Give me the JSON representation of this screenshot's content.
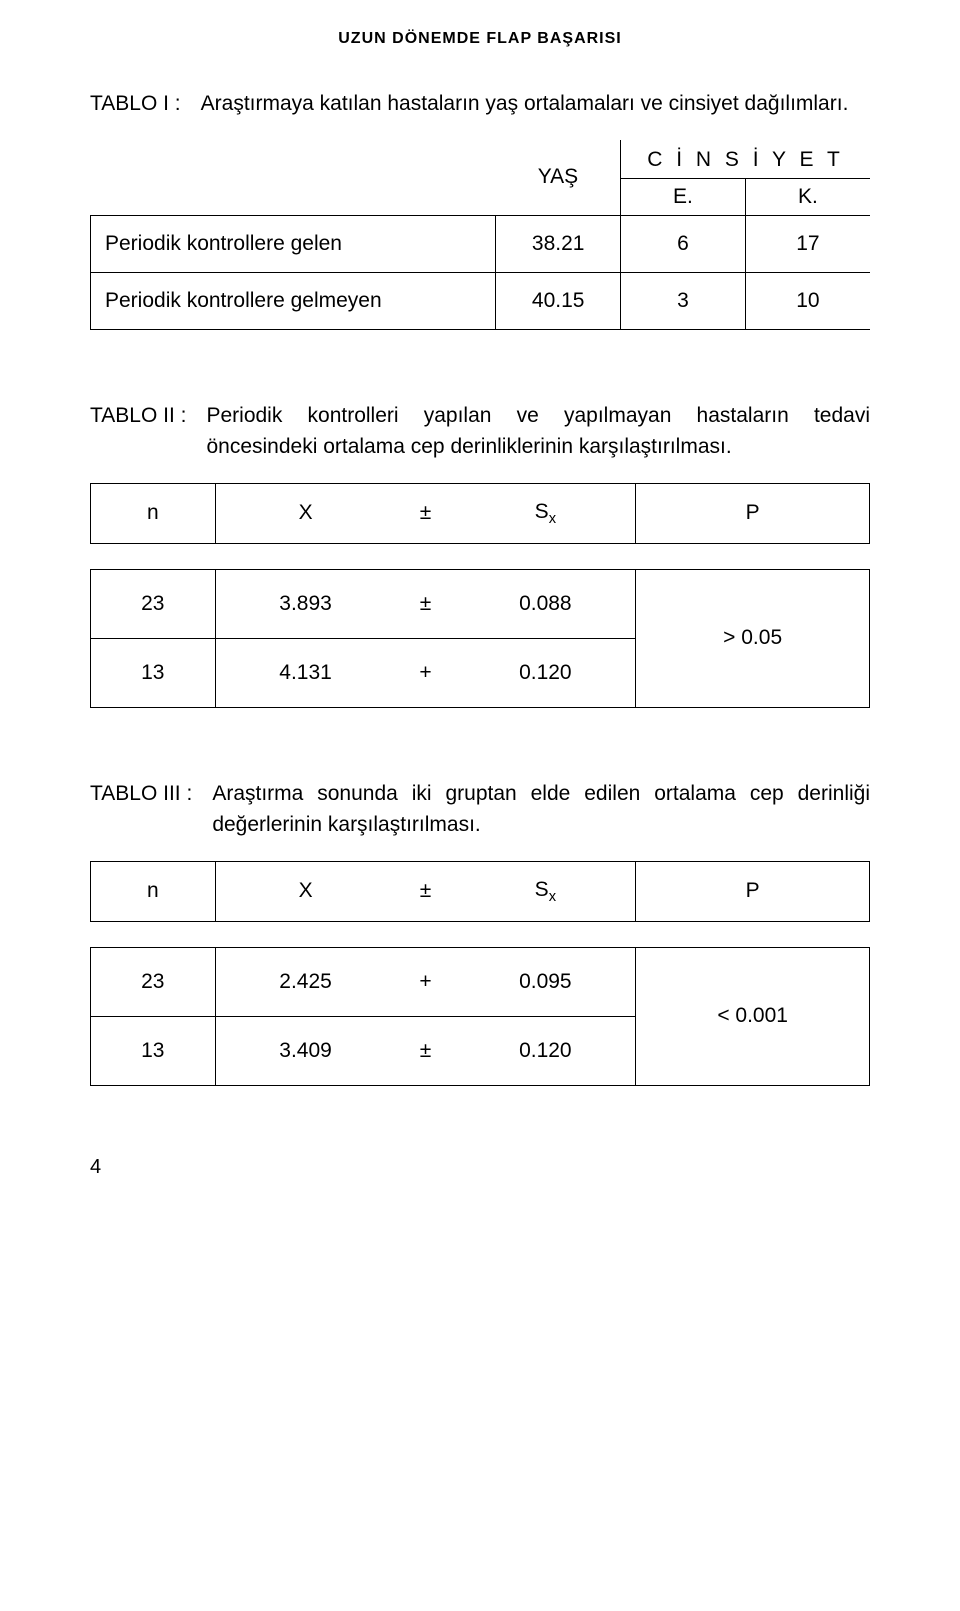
{
  "running_head": "UZUN DÖNEMDE FLAP BAŞARISI",
  "tablo1": {
    "label": "TABLO I  :",
    "caption": "Araştırmaya katılan hastaların yaş ortalamaları ve cinsiyet dağılımları.",
    "head_yas": "YAŞ",
    "head_cinsiyet": "C İ N S İ Y E T",
    "head_e": "E.",
    "head_k": "K.",
    "rows": [
      {
        "label": "Periodik kontrollere gelen",
        "yas": "38.21",
        "e": "6",
        "k": "17"
      },
      {
        "label": "Periodik kontrollere gelmeyen",
        "yas": "40.15",
        "e": "3",
        "k": "10"
      }
    ]
  },
  "tablo2": {
    "label": "TABLO II  :",
    "caption": "Periodik kontrolleri yapılan ve yapılmayan hastaların tedavi öncesindeki ortalama cep derinliklerinin karşılaştırılması.",
    "head_n": "n",
    "head_x": "X",
    "head_pm": "±",
    "head_s": "S",
    "head_s_sub": "x",
    "head_p": "P",
    "rows": [
      {
        "n": "23",
        "x": "3.893",
        "pm": "±",
        "s": "0.088"
      },
      {
        "n": "13",
        "x": "4.131",
        "pm": "+",
        "s": "0.120"
      }
    ],
    "p": "> 0.05"
  },
  "tablo3": {
    "label": "TABLO III  :",
    "caption": "Araştırma sonunda iki gruptan elde edilen ortalama cep derinliği değerlerinin karşılaştırılması.",
    "head_n": "n",
    "head_x": "X",
    "head_pm": "±",
    "head_s": "S",
    "head_s_sub": "x",
    "head_p": "P",
    "rows": [
      {
        "n": "23",
        "x": "2.425",
        "pm": "+",
        "s": "0.095"
      },
      {
        "n": "13",
        "x": "3.409",
        "pm": "±",
        "s": "0.120"
      }
    ],
    "p": "< 0.001"
  },
  "page_num": "4",
  "style": {
    "text_color": "#000000",
    "background": "#ffffff",
    "border_color": "#000000",
    "body_fontsize_pt": 16,
    "header_fontsize_pt": 12
  }
}
